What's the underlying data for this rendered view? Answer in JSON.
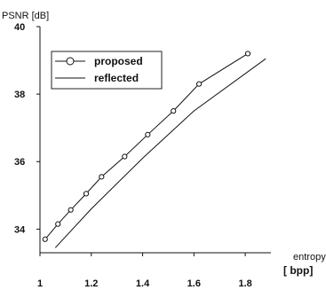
{
  "chart_data": {
    "type": "line",
    "ylabel": "PSNR [dB]",
    "xlabel": "entropy",
    "xunit": "[ bpp]",
    "xlim": [
      1.0,
      1.9
    ],
    "ylim": [
      33.3,
      40.0
    ],
    "xticks": [
      "1",
      "1.2",
      "1.4",
      "1.6",
      "1.8"
    ],
    "yticks": [
      "34",
      "36",
      "38",
      "40"
    ],
    "grid": false,
    "legend_position": "top-left",
    "series": [
      {
        "name": "proposed",
        "style": "line with open circle markers",
        "color": "#111111",
        "x": [
          1.02,
          1.07,
          1.12,
          1.18,
          1.24,
          1.33,
          1.42,
          1.52,
          1.62,
          1.81
        ],
        "y": [
          33.7,
          34.15,
          34.57,
          35.05,
          35.55,
          36.15,
          36.8,
          37.5,
          38.3,
          39.2
        ]
      },
      {
        "name": "reflected",
        "style": "solid line",
        "color": "#111111",
        "x": [
          1.06,
          1.2,
          1.4,
          1.6,
          1.88
        ],
        "y": [
          33.45,
          34.6,
          36.1,
          37.5,
          39.05
        ]
      }
    ]
  }
}
